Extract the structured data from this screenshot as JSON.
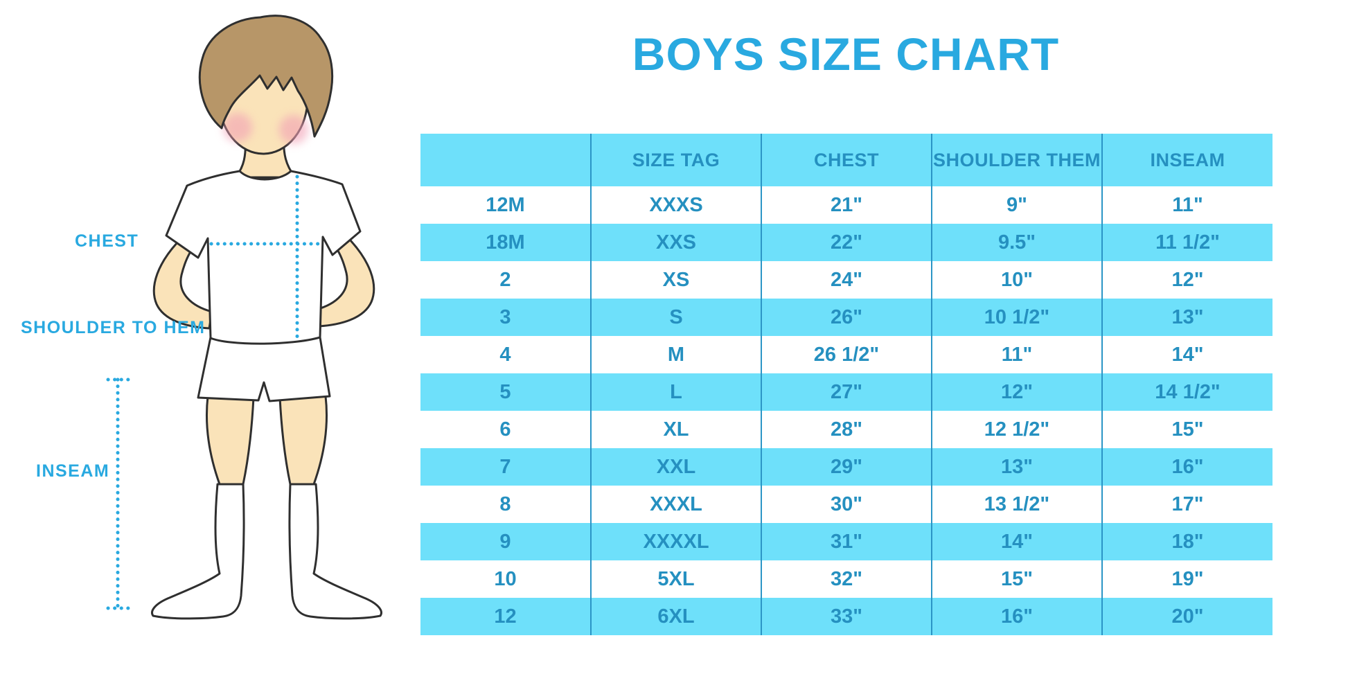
{
  "chart_data": {
    "type": "table",
    "title": "BOYS SIZE CHART",
    "columns": [
      "",
      "SIZE TAG",
      "CHEST",
      "SHOULDER THEM",
      "INSEAM"
    ],
    "rows": [
      [
        "12M",
        "XXXS",
        "21\"",
        "9\"",
        "11\""
      ],
      [
        "18M",
        "XXS",
        "22\"",
        "9.5\"",
        "11 1/2\""
      ],
      [
        "2",
        "XS",
        "24\"",
        "10\"",
        "12\""
      ],
      [
        "3",
        "S",
        "26\"",
        "10 1/2\"",
        "13\""
      ],
      [
        "4",
        "M",
        "26 1/2\"",
        "11\"",
        "14\""
      ],
      [
        "5",
        "L",
        "27\"",
        "12\"",
        "14 1/2\""
      ],
      [
        "6",
        "XL",
        "28\"",
        "12 1/2\"",
        "15\""
      ],
      [
        "7",
        "XXL",
        "29\"",
        "13\"",
        "16\""
      ],
      [
        "8",
        "XXXL",
        "30\"",
        "13 1/2\"",
        "17\""
      ],
      [
        "9",
        "XXXXL",
        "31\"",
        "14\"",
        "18\""
      ],
      [
        "10",
        "5XL",
        "32\"",
        "15\"",
        "19\""
      ],
      [
        "12",
        "6XL",
        "33\"",
        "16\"",
        "20\""
      ]
    ]
  },
  "figure": {
    "labels": {
      "chest": "CHEST",
      "shoulder_to_hem": "SHOULDER TO HEM",
      "inseam": "INSEAM"
    }
  },
  "colors": {
    "accent": "#29A9E0",
    "stripe": "#6EE0FA",
    "table_text": "#2590C0",
    "divider": "#2B95C6",
    "skin": "#FAE3B9",
    "hair": "#B79668",
    "cheek": "#F2A0B5",
    "outline": "#2F2F2F",
    "background": "#FFFFFF"
  }
}
